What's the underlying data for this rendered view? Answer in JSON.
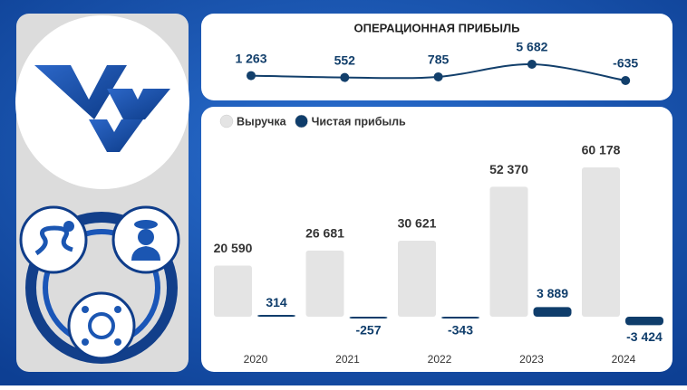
{
  "chart_data": [
    {
      "type": "line",
      "title": "ОПЕРАЦИОННАЯ ПРИБЫЛЬ",
      "categories": [
        null,
        null,
        null,
        null,
        null
      ],
      "values": [
        1263,
        552,
        785,
        5682,
        -635
      ],
      "value_labels": [
        "1 263",
        "552",
        "785",
        "5 682",
        "-635"
      ],
      "color": "#123f6b"
    },
    {
      "type": "bar",
      "categories": [
        "2020",
        "2021",
        "2022",
        "2023",
        "2024"
      ],
      "series": [
        {
          "name": "Выручка",
          "color": "#e4e4e4",
          "values": [
            20590,
            26681,
            30621,
            52370,
            60178
          ],
          "value_labels": [
            "20 590",
            "26 681",
            "30 621",
            "52 370",
            "60 178"
          ]
        },
        {
          "name": "Чистая прибыль",
          "color": "#0f3d6b",
          "values": [
            314,
            -257,
            -343,
            3889,
            -3424
          ],
          "value_labels": [
            "314",
            "-257",
            "-343",
            "3 889",
            "-3 424"
          ]
        }
      ]
    }
  ]
}
